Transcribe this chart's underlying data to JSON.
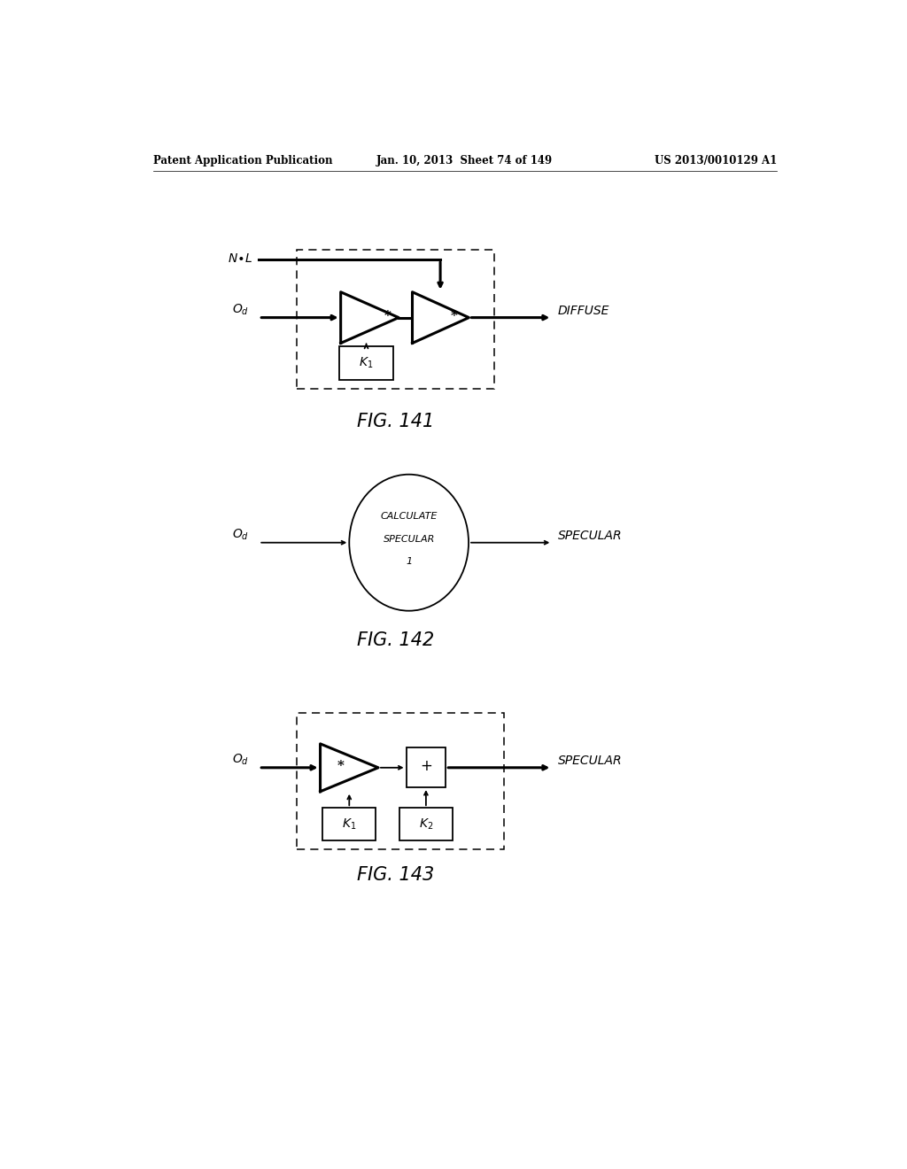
{
  "bg_color": "#ffffff",
  "header_left": "Patent Application Publication",
  "header_mid": "Jan. 10, 2013  Sheet 74 of 149",
  "header_right": "US 2013/0010129 A1",
  "fig141_caption": "FIG. 141",
  "fig142_caption": "FIG. 142",
  "fig143_caption": "FIG. 143",
  "lw_main": 1.3,
  "lw_thick": 2.2,
  "lw_dashed": 1.1,
  "fs_label": 10,
  "fs_caption": 15,
  "fs_header": 8.5
}
